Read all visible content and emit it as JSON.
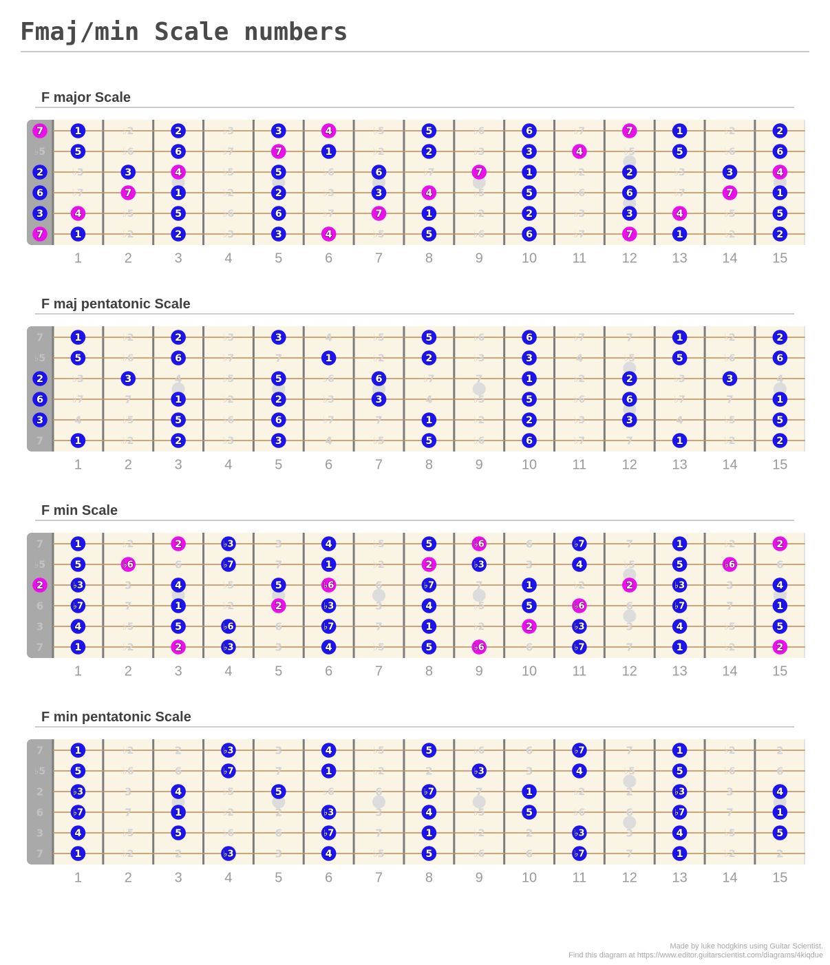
{
  "page": {
    "title": "Fmaj/min Scale numbers",
    "background": "#ffffff",
    "footer": {
      "line1": "Made by luke hodgkins using Guitar Scientist.",
      "line2": "Find this diagram at https://www.editor.guitarscientist.com/diagrams/4kiqdue"
    }
  },
  "colors": {
    "title_text": "#4a4a4a",
    "section_text": "#3f3f3f",
    "rule": "#cbcbcb",
    "board_bg": "#faf4e4",
    "board_right_edge": "#dfdfdf",
    "nut": "#a9a9a9",
    "fret_line": "#7c7c7c",
    "string": "#c69464",
    "inlay": "#dcdcdc",
    "dot_blue": "#1c13ef",
    "dot_magenta": "#ea10ea",
    "dot_text": "#ffffff",
    "muted_text": "#d3d3d3",
    "muted_text_on_nut": "#c2c2c2",
    "fret_number": "#9a9a9a",
    "footer_text": "#a6a6a6"
  },
  "fret_numbers": [
    "1",
    "2",
    "3",
    "4",
    "5",
    "6",
    "7",
    "8",
    "9",
    "10",
    "11",
    "12",
    "13",
    "14",
    "15"
  ],
  "inlays": {
    "single_frets": [
      3,
      5,
      7,
      9,
      15
    ],
    "double_frets": [
      12
    ]
  },
  "cell_format": "degree:type — type b = blue dot, m = magenta dot, x = not in scale (muted grey label); 16 positions per string (position 0 = open string on nut), 6 strings top (high E) to bottom (low E)",
  "boards": [
    {
      "label": "F major Scale",
      "grid": [
        [
          "7:m",
          "1:b",
          "♭2:x",
          "2:b",
          "♭3:x",
          "3:b",
          "4:m",
          "♭5:x",
          "5:b",
          "♭6:x",
          "6:b",
          "♭7:x",
          "7:m",
          "1:b",
          "♭2:x",
          "2:b"
        ],
        [
          "♭5:x",
          "5:b",
          "♭6:x",
          "6:b",
          "♭7:x",
          "7:m",
          "1:b",
          "♭2:x",
          "2:b",
          "♭3:x",
          "3:b",
          "4:m",
          "♭5:x",
          "5:b",
          "♭6:x",
          "6:b"
        ],
        [
          "2:b",
          "♭3:x",
          "3:b",
          "4:m",
          "♭5:x",
          "5:b",
          "♭6:x",
          "6:b",
          "♭7:x",
          "7:m",
          "1:b",
          "♭2:x",
          "2:b",
          "♭3:x",
          "3:b",
          "4:m"
        ],
        [
          "6:b",
          "♭7:x",
          "7:m",
          "1:b",
          "♭2:x",
          "2:b",
          "♭3:x",
          "3:b",
          "4:m",
          "♭5:x",
          "5:b",
          "♭6:x",
          "6:b",
          "♭7:x",
          "7:m",
          "1:b"
        ],
        [
          "3:b",
          "4:m",
          "♭5:x",
          "5:b",
          "♭6:x",
          "6:b",
          "♭7:x",
          "7:m",
          "1:b",
          "♭2:x",
          "2:b",
          "♭3:x",
          "3:b",
          "4:m",
          "♭5:x",
          "5:b"
        ],
        [
          "7:m",
          "1:b",
          "♭2:x",
          "2:b",
          "♭3:x",
          "3:b",
          "4:m",
          "♭5:x",
          "5:b",
          "♭6:x",
          "6:b",
          "♭7:x",
          "7:m",
          "1:b",
          "♭2:x",
          "2:b"
        ]
      ]
    },
    {
      "label": "F maj pentatonic Scale",
      "grid": [
        [
          "7:x",
          "1:b",
          "♭2:x",
          "2:b",
          "♭3:x",
          "3:b",
          "4:x",
          "♭5:x",
          "5:b",
          "♭6:x",
          "6:b",
          "♭7:x",
          "7:x",
          "1:b",
          "♭2:x",
          "2:b"
        ],
        [
          "♭5:x",
          "5:b",
          "♭6:x",
          "6:b",
          "♭7:x",
          "7:x",
          "1:b",
          "♭2:x",
          "2:b",
          "♭3:x",
          "3:b",
          "4:x",
          "♭5:x",
          "5:b",
          "♭6:x",
          "6:b"
        ],
        [
          "2:b",
          "♭3:x",
          "3:b",
          "4:x",
          "♭5:x",
          "5:b",
          "♭6:x",
          "6:b",
          "♭7:x",
          "7:x",
          "1:b",
          "♭2:x",
          "2:b",
          "♭3:x",
          "3:b",
          "4:x"
        ],
        [
          "6:b",
          "♭7:x",
          "7:x",
          "1:b",
          "♭2:x",
          "2:b",
          "♭3:x",
          "3:b",
          "4:x",
          "♭5:x",
          "5:b",
          "♭6:x",
          "6:b",
          "♭7:x",
          "7:x",
          "1:b"
        ],
        [
          "3:b",
          "4:x",
          "♭5:x",
          "5:b",
          "♭6:x",
          "6:b",
          "♭7:x",
          "7:x",
          "1:b",
          "♭2:x",
          "2:b",
          "♭3:x",
          "3:b",
          "4:x",
          "♭5:x",
          "5:b"
        ],
        [
          "7:x",
          "1:b",
          "♭2:x",
          "2:b",
          "♭3:x",
          "3:b",
          "4:x",
          "♭5:x",
          "5:b",
          "♭6:x",
          "6:b",
          "♭7:x",
          "7:x",
          "1:b",
          "♭2:x",
          "2:b"
        ]
      ]
    },
    {
      "label": "F min Scale",
      "grid": [
        [
          "7:x",
          "1:b",
          "♭2:x",
          "2:m",
          "♭3:b",
          "3:x",
          "4:b",
          "♭5:x",
          "5:b",
          "♭6:m",
          "6:x",
          "♭7:b",
          "7:x",
          "1:b",
          "♭2:x",
          "2:m"
        ],
        [
          "♭5:x",
          "5:b",
          "♭6:m",
          "6:x",
          "♭7:b",
          "7:x",
          "1:b",
          "♭2:x",
          "2:m",
          "♭3:b",
          "3:x",
          "4:b",
          "♭5:x",
          "5:b",
          "♭6:m",
          "6:x"
        ],
        [
          "2:m",
          "♭3:b",
          "3:x",
          "4:b",
          "♭5:x",
          "5:b",
          "♭6:m",
          "6:x",
          "♭7:b",
          "7:x",
          "1:b",
          "♭2:x",
          "2:m",
          "♭3:b",
          "3:x",
          "4:b"
        ],
        [
          "6:x",
          "♭7:b",
          "7:x",
          "1:b",
          "♭2:x",
          "2:m",
          "♭3:b",
          "3:x",
          "4:b",
          "♭5:x",
          "5:b",
          "♭6:m",
          "6:x",
          "♭7:b",
          "7:x",
          "1:b"
        ],
        [
          "3:x",
          "4:b",
          "♭5:x",
          "5:b",
          "♭6:b",
          "6:x",
          "♭7:b",
          "7:x",
          "1:b",
          "♭2:x",
          "2:m",
          "♭3:b",
          "3:x",
          "4:b",
          "♭5:x",
          "5:b"
        ],
        [
          "7:x",
          "1:b",
          "♭2:x",
          "2:m",
          "♭3:b",
          "3:x",
          "4:b",
          "♭5:x",
          "5:b",
          "♭6:m",
          "6:x",
          "♭7:b",
          "7:x",
          "1:b",
          "♭2:x",
          "2:m"
        ]
      ]
    },
    {
      "label": "F min pentatonic Scale",
      "grid": [
        [
          "7:x",
          "1:b",
          "♭2:x",
          "2:x",
          "♭3:b",
          "3:x",
          "4:b",
          "♭5:x",
          "5:b",
          "♭6:x",
          "6:x",
          "♭7:b",
          "7:x",
          "1:b",
          "♭2:x",
          "2:x"
        ],
        [
          "♭5:x",
          "5:b",
          "♭6:x",
          "6:x",
          "♭7:b",
          "7:x",
          "1:b",
          "♭2:x",
          "2:x",
          "♭3:b",
          "3:x",
          "4:b",
          "♭5:x",
          "5:b",
          "♭6:x",
          "6:x"
        ],
        [
          "2:x",
          "♭3:b",
          "3:x",
          "4:b",
          "♭5:x",
          "5:b",
          "♭6:x",
          "6:x",
          "♭7:b",
          "7:x",
          "1:b",
          "♭2:x",
          "2:x",
          "♭3:b",
          "3:x",
          "4:b"
        ],
        [
          "6:x",
          "♭7:b",
          "7:x",
          "1:b",
          "♭2:x",
          "2:x",
          "♭3:b",
          "3:x",
          "4:b",
          "♭5:x",
          "5:b",
          "♭6:x",
          "6:x",
          "♭7:b",
          "7:x",
          "1:b"
        ],
        [
          "3:x",
          "4:b",
          "♭5:x",
          "5:b",
          "♭6:x",
          "6:x",
          "♭7:b",
          "7:x",
          "1:b",
          "♭2:x",
          "2:x",
          "♭3:b",
          "3:x",
          "4:b",
          "♭5:x",
          "5:b"
        ],
        [
          "7:x",
          "1:b",
          "♭2:x",
          "2:x",
          "♭3:b",
          "3:x",
          "4:b",
          "♭5:x",
          "5:b",
          "♭6:x",
          "6:x",
          "♭7:b",
          "7:x",
          "1:b",
          "♭2:x",
          "2:x"
        ]
      ]
    }
  ]
}
